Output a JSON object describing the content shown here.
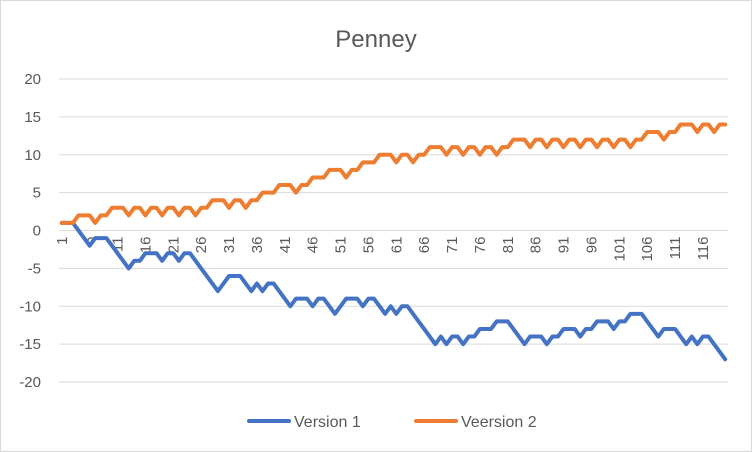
{
  "chart_data": {
    "type": "line",
    "title": "Penney",
    "xlabel": "",
    "ylabel": "",
    "ylim": [
      -20,
      20
    ],
    "yticks": [
      -20,
      -15,
      -10,
      -5,
      0,
      5,
      10,
      15,
      20
    ],
    "xlim": [
      1,
      120
    ],
    "xtick_labels": [
      "1",
      "6",
      "11",
      "16",
      "21",
      "26",
      "31",
      "36",
      "41",
      "46",
      "51",
      "56",
      "61",
      "66",
      "71",
      "76",
      "81",
      "86",
      "91",
      "96",
      "101",
      "106",
      "111",
      "116"
    ],
    "grid": true,
    "legend_position": "bottom",
    "series": [
      {
        "name": "Version 1",
        "color": "#4472c4",
        "points": [
          [
            1,
            1
          ],
          [
            2,
            1
          ],
          [
            3,
            1
          ],
          [
            5,
            -1
          ],
          [
            6,
            -2
          ],
          [
            7,
            -1
          ],
          [
            8,
            -1
          ],
          [
            9,
            -1
          ],
          [
            11,
            -3
          ],
          [
            12,
            -4
          ],
          [
            13,
            -5
          ],
          [
            14,
            -4
          ],
          [
            15,
            -4
          ],
          [
            16,
            -3
          ],
          [
            17,
            -3
          ],
          [
            18,
            -3
          ],
          [
            19,
            -4
          ],
          [
            20,
            -3
          ],
          [
            21,
            -3
          ],
          [
            22,
            -4
          ],
          [
            23,
            -3
          ],
          [
            24,
            -3
          ],
          [
            26,
            -5
          ],
          [
            27,
            -6
          ],
          [
            28,
            -7
          ],
          [
            29,
            -8
          ],
          [
            30,
            -7
          ],
          [
            31,
            -6
          ],
          [
            32,
            -6
          ],
          [
            33,
            -6
          ],
          [
            34,
            -7
          ],
          [
            35,
            -8
          ],
          [
            36,
            -7
          ],
          [
            37,
            -8
          ],
          [
            38,
            -7
          ],
          [
            39,
            -7
          ],
          [
            41,
            -9
          ],
          [
            42,
            -10
          ],
          [
            43,
            -9
          ],
          [
            44,
            -9
          ],
          [
            45,
            -9
          ],
          [
            46,
            -10
          ],
          [
            47,
            -9
          ],
          [
            48,
            -9
          ],
          [
            49,
            -10
          ],
          [
            50,
            -11
          ],
          [
            51,
            -10
          ],
          [
            52,
            -9
          ],
          [
            53,
            -9
          ],
          [
            54,
            -9
          ],
          [
            55,
            -10
          ],
          [
            56,
            -9
          ],
          [
            57,
            -9
          ],
          [
            58,
            -10
          ],
          [
            59,
            -11
          ],
          [
            60,
            -10
          ],
          [
            61,
            -11
          ],
          [
            62,
            -10
          ],
          [
            63,
            -10
          ],
          [
            65,
            -12
          ],
          [
            66,
            -13
          ],
          [
            67,
            -14
          ],
          [
            68,
            -15
          ],
          [
            69,
            -14
          ],
          [
            70,
            -15
          ],
          [
            71,
            -14
          ],
          [
            72,
            -14
          ],
          [
            73,
            -15
          ],
          [
            74,
            -14
          ],
          [
            75,
            -14
          ],
          [
            76,
            -13
          ],
          [
            77,
            -13
          ],
          [
            78,
            -13
          ],
          [
            79,
            -12
          ],
          [
            80,
            -12
          ],
          [
            81,
            -12
          ],
          [
            82,
            -13
          ],
          [
            83,
            -14
          ],
          [
            84,
            -15
          ],
          [
            85,
            -14
          ],
          [
            86,
            -14
          ],
          [
            87,
            -14
          ],
          [
            88,
            -15
          ],
          [
            89,
            -14
          ],
          [
            90,
            -14
          ],
          [
            91,
            -13
          ],
          [
            92,
            -13
          ],
          [
            93,
            -13
          ],
          [
            94,
            -14
          ],
          [
            95,
            -13
          ],
          [
            96,
            -13
          ],
          [
            97,
            -12
          ],
          [
            98,
            -12
          ],
          [
            99,
            -12
          ],
          [
            100,
            -13
          ],
          [
            101,
            -12
          ],
          [
            102,
            -12
          ],
          [
            103,
            -11
          ],
          [
            104,
            -11
          ],
          [
            105,
            -11
          ],
          [
            106,
            -12
          ],
          [
            107,
            -13
          ],
          [
            108,
            -14
          ],
          [
            109,
            -13
          ],
          [
            110,
            -13
          ],
          [
            111,
            -13
          ],
          [
            112,
            -14
          ],
          [
            113,
            -15
          ],
          [
            114,
            -14
          ],
          [
            115,
            -15
          ],
          [
            116,
            -14
          ],
          [
            117,
            -14
          ],
          [
            118,
            -15
          ],
          [
            119,
            -16
          ],
          [
            120,
            -17
          ]
        ]
      },
      {
        "name": "Veersion 2",
        "color": "#ed7d31",
        "points": [
          [
            1,
            1
          ],
          [
            2,
            1
          ],
          [
            3,
            1
          ],
          [
            4,
            2
          ],
          [
            5,
            2
          ],
          [
            6,
            2
          ],
          [
            7,
            1
          ],
          [
            8,
            2
          ],
          [
            9,
            2
          ],
          [
            10,
            3
          ],
          [
            11,
            3
          ],
          [
            12,
            3
          ],
          [
            13,
            2
          ],
          [
            14,
            3
          ],
          [
            15,
            3
          ],
          [
            16,
            2
          ],
          [
            17,
            3
          ],
          [
            18,
            3
          ],
          [
            19,
            2
          ],
          [
            20,
            3
          ],
          [
            21,
            3
          ],
          [
            22,
            2
          ],
          [
            23,
            3
          ],
          [
            24,
            3
          ],
          [
            25,
            2
          ],
          [
            26,
            3
          ],
          [
            27,
            3
          ],
          [
            28,
            4
          ],
          [
            29,
            4
          ],
          [
            30,
            4
          ],
          [
            31,
            3
          ],
          [
            32,
            4
          ],
          [
            33,
            4
          ],
          [
            34,
            3
          ],
          [
            35,
            4
          ],
          [
            36,
            4
          ],
          [
            37,
            5
          ],
          [
            38,
            5
          ],
          [
            39,
            5
          ],
          [
            40,
            6
          ],
          [
            41,
            6
          ],
          [
            42,
            6
          ],
          [
            43,
            5
          ],
          [
            44,
            6
          ],
          [
            45,
            6
          ],
          [
            46,
            7
          ],
          [
            47,
            7
          ],
          [
            48,
            7
          ],
          [
            49,
            8
          ],
          [
            50,
            8
          ],
          [
            51,
            8
          ],
          [
            52,
            7
          ],
          [
            53,
            8
          ],
          [
            54,
            8
          ],
          [
            55,
            9
          ],
          [
            56,
            9
          ],
          [
            57,
            9
          ],
          [
            58,
            10
          ],
          [
            59,
            10
          ],
          [
            60,
            10
          ],
          [
            61,
            9
          ],
          [
            62,
            10
          ],
          [
            63,
            10
          ],
          [
            64,
            9
          ],
          [
            65,
            10
          ],
          [
            66,
            10
          ],
          [
            67,
            11
          ],
          [
            68,
            11
          ],
          [
            69,
            11
          ],
          [
            70,
            10
          ],
          [
            71,
            11
          ],
          [
            72,
            11
          ],
          [
            73,
            10
          ],
          [
            74,
            11
          ],
          [
            75,
            11
          ],
          [
            76,
            10
          ],
          [
            77,
            11
          ],
          [
            78,
            11
          ],
          [
            79,
            10
          ],
          [
            80,
            11
          ],
          [
            81,
            11
          ],
          [
            82,
            12
          ],
          [
            83,
            12
          ],
          [
            84,
            12
          ],
          [
            85,
            11
          ],
          [
            86,
            12
          ],
          [
            87,
            12
          ],
          [
            88,
            11
          ],
          [
            89,
            12
          ],
          [
            90,
            12
          ],
          [
            91,
            11
          ],
          [
            92,
            12
          ],
          [
            93,
            12
          ],
          [
            94,
            11
          ],
          [
            95,
            12
          ],
          [
            96,
            12
          ],
          [
            97,
            11
          ],
          [
            98,
            12
          ],
          [
            99,
            12
          ],
          [
            100,
            11
          ],
          [
            101,
            12
          ],
          [
            102,
            12
          ],
          [
            103,
            11
          ],
          [
            104,
            12
          ],
          [
            105,
            12
          ],
          [
            106,
            13
          ],
          [
            107,
            13
          ],
          [
            108,
            13
          ],
          [
            109,
            12
          ],
          [
            110,
            13
          ],
          [
            111,
            13
          ],
          [
            112,
            14
          ],
          [
            113,
            14
          ],
          [
            114,
            14
          ],
          [
            115,
            13
          ],
          [
            116,
            14
          ],
          [
            117,
            14
          ],
          [
            118,
            13
          ],
          [
            119,
            14
          ],
          [
            120,
            14
          ]
        ]
      }
    ]
  }
}
